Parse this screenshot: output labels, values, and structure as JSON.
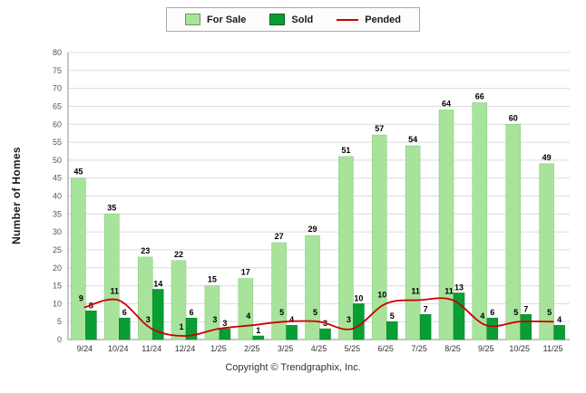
{
  "legend": {
    "for_sale_label": "For Sale",
    "sold_label": "Sold",
    "pended_label": "Pended"
  },
  "y_axis_title": "Number of Homes",
  "footer": "Copyright © Trendgraphix, Inc.",
  "colors": {
    "for_sale": "#a8e39c",
    "sold": "#089e33",
    "pended": "#cc0000",
    "grid": "#dcdcdc",
    "axis": "#8c8c8c",
    "tick_text": "#555555",
    "label_text": "#000000"
  },
  "chart_data": {
    "type": "bar",
    "title": "",
    "xlabel": "",
    "ylabel": "Number of Homes",
    "ylim": [
      0,
      80
    ],
    "y_tick_step": 5,
    "grid": true,
    "legend_position": "top-center",
    "categories": [
      "9/24",
      "10/24",
      "11/24",
      "12/24",
      "1/25",
      "2/25",
      "3/25",
      "4/25",
      "5/25",
      "6/25",
      "7/25",
      "8/25",
      "9/25",
      "10/25",
      "11/25"
    ],
    "series": [
      {
        "name": "For Sale",
        "type": "bar",
        "color": "#a8e39c",
        "values": [
          45,
          35,
          23,
          22,
          15,
          17,
          27,
          29,
          51,
          57,
          54,
          64,
          66,
          60,
          49
        ]
      },
      {
        "name": "Sold",
        "type": "bar",
        "color": "#089e33",
        "values": [
          8,
          6,
          14,
          6,
          3,
          1,
          4,
          3,
          10,
          5,
          7,
          13,
          6,
          7,
          4
        ]
      },
      {
        "name": "Pended",
        "type": "line",
        "color": "#cc0000",
        "values": [
          9,
          11,
          3,
          1,
          3,
          4,
          5,
          5,
          3,
          10,
          11,
          11,
          4,
          5,
          5
        ]
      }
    ]
  }
}
